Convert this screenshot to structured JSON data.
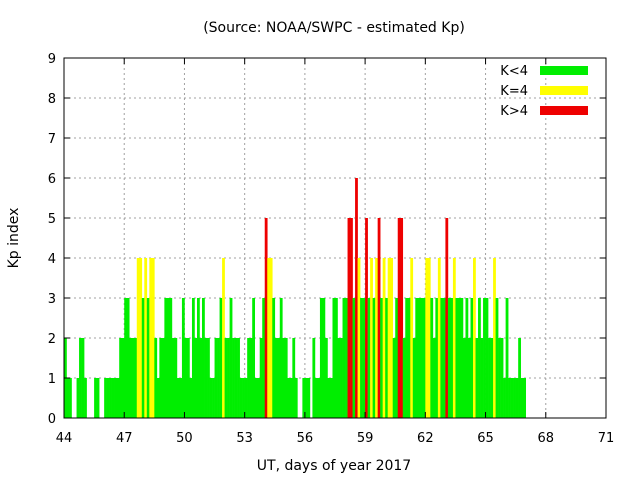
{
  "chart_data": {
    "type": "bar",
    "title": "(Source: NOAA/SWPC - estimated Kp)",
    "xlabel": "UT, days of year 2017",
    "ylabel": "Kp index",
    "xlim": [
      44,
      71
    ],
    "ylim": [
      0,
      9
    ],
    "x_ticks": [
      44,
      47,
      50,
      53,
      56,
      59,
      62,
      65,
      68,
      71
    ],
    "y_ticks": [
      0,
      1,
      2,
      3,
      4,
      5,
      6,
      7,
      8,
      9
    ],
    "grid": true,
    "legend_position": "top-right",
    "bin_days": 0.125,
    "x_start": 44,
    "legend": [
      {
        "name": "K<4",
        "color": "#00ee00"
      },
      {
        "name": "K=4",
        "color": "#ffff00"
      },
      {
        "name": "K>4",
        "color": "#ee0000"
      }
    ],
    "values": [
      2,
      1,
      1,
      0,
      0,
      1,
      2,
      2,
      1,
      0,
      0,
      0,
      1,
      1,
      0,
      0,
      1,
      1,
      1,
      1,
      1,
      1,
      2,
      2,
      3,
      3,
      2,
      2,
      2,
      4,
      4,
      3,
      4,
      3,
      4,
      4,
      2,
      1,
      2,
      2,
      3,
      3,
      3,
      2,
      2,
      1,
      1,
      3,
      2,
      2,
      1,
      3,
      2,
      3,
      2,
      3,
      2,
      2,
      1,
      1,
      2,
      2,
      3,
      4,
      2,
      2,
      3,
      2,
      2,
      2,
      1,
      1,
      1,
      2,
      2,
      3,
      1,
      1,
      2,
      3,
      5,
      4,
      4,
      3,
      2,
      2,
      3,
      2,
      2,
      1,
      1,
      2,
      1,
      0,
      0,
      1,
      1,
      1,
      0,
      2,
      1,
      1,
      3,
      3,
      2,
      1,
      1,
      3,
      3,
      2,
      2,
      3,
      3,
      5,
      5,
      3,
      6,
      4,
      3,
      3,
      5,
      3,
      4,
      3,
      4,
      5,
      3,
      4,
      3,
      4,
      4,
      2,
      3,
      5,
      5,
      2,
      3,
      3,
      4,
      2,
      3,
      3,
      3,
      3,
      4,
      4,
      3,
      2,
      3,
      4,
      3,
      3,
      5,
      3,
      3,
      4,
      3,
      3,
      3,
      2,
      3,
      2,
      3,
      4,
      2,
      3,
      2,
      3,
      3,
      2,
      2,
      4,
      3,
      2,
      2,
      1,
      3,
      1,
      1,
      1,
      1,
      2,
      1,
      1
    ]
  }
}
